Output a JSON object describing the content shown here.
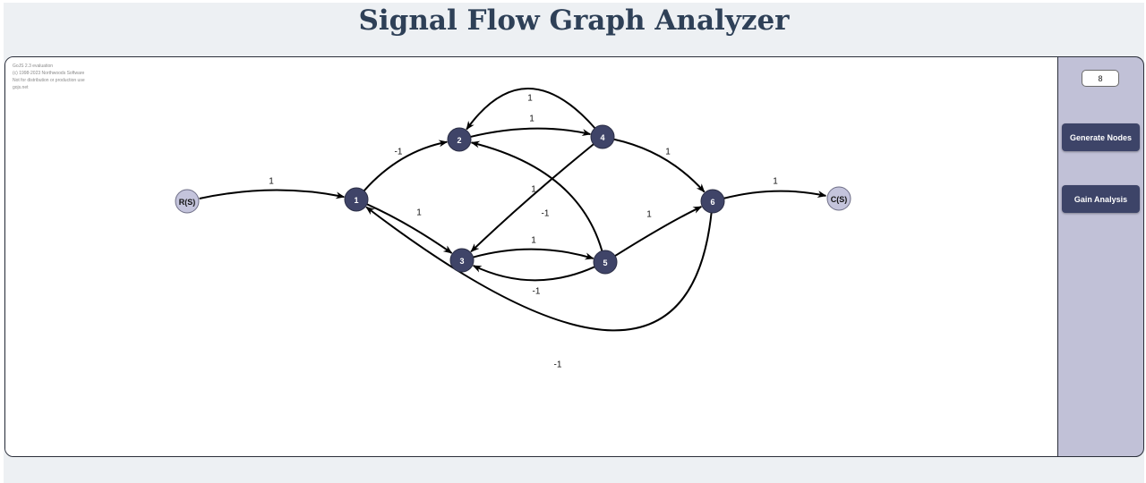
{
  "header": {
    "title": "Signal Flow Graph Analyzer"
  },
  "watermark": [
    "GoJS 2.3 evaluation",
    "(c) 1998-2023 Northwoods Software",
    "Not for distribution or production use",
    "gojs.net"
  ],
  "colors": {
    "node_fill": "#3f4468",
    "terminal_fill": "#c4c4dc",
    "sidebar": "#c1c1d7",
    "button": "#3d4468",
    "title": "#2e4057"
  },
  "graph": {
    "nodes": [
      {
        "id": "R",
        "label": "R(S)",
        "kind": "terminal"
      },
      {
        "id": "1",
        "label": "1",
        "kind": "node"
      },
      {
        "id": "2",
        "label": "2",
        "kind": "node"
      },
      {
        "id": "3",
        "label": "3",
        "kind": "node"
      },
      {
        "id": "4",
        "label": "4",
        "kind": "node"
      },
      {
        "id": "5",
        "label": "5",
        "kind": "node"
      },
      {
        "id": "6",
        "label": "6",
        "kind": "node"
      },
      {
        "id": "C",
        "label": "C(S)",
        "kind": "terminal"
      }
    ],
    "edges": [
      {
        "from": "R",
        "to": "1",
        "gain": "1"
      },
      {
        "from": "1",
        "to": "2",
        "gain": "-1"
      },
      {
        "from": "1",
        "to": "3",
        "gain": "1"
      },
      {
        "from": "2",
        "to": "4",
        "gain": "1"
      },
      {
        "from": "4",
        "to": "2",
        "gain": "1"
      },
      {
        "from": "4",
        "to": "6",
        "gain": "1"
      },
      {
        "from": "4",
        "to": "3",
        "gain": "1"
      },
      {
        "from": "5",
        "to": "2",
        "gain": "-1"
      },
      {
        "from": "3",
        "to": "5",
        "gain": "1"
      },
      {
        "from": "5",
        "to": "3",
        "gain": "-1"
      },
      {
        "from": "5",
        "to": "6",
        "gain": "1"
      },
      {
        "from": "6",
        "to": "C",
        "gain": "1"
      },
      {
        "from": "6",
        "to": "1",
        "gain": "-1"
      }
    ]
  },
  "sidebar": {
    "node_count_value": "8",
    "generate_label": "Generate Nodes",
    "gain_label": "Gain Analysis"
  }
}
